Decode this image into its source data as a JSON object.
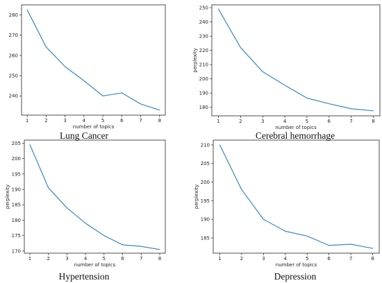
{
  "line_color": "#3a86c0",
  "chart_data": [
    {
      "type": "line",
      "caption": "Lung Cancer",
      "xlabel": "number of topics",
      "ylabel": "",
      "x": [
        1,
        2,
        3,
        4,
        5,
        6,
        7,
        8
      ],
      "series": [
        {
          "values": [
            282.5,
            264.2,
            254.5,
            247.5,
            240.0,
            241.5,
            236.0,
            233.0
          ]
        }
      ],
      "xlim": [
        0.7,
        8.3
      ],
      "ylim": [
        230.5,
        285.0
      ],
      "xticks": [
        1,
        2,
        3,
        4,
        5,
        6,
        7,
        8
      ],
      "yticks": [
        240,
        250,
        260,
        270,
        280
      ],
      "grid": false
    },
    {
      "type": "line",
      "caption": "Cerebral hemorrhage",
      "xlabel": "number of topics",
      "ylabel": "perplexity",
      "x": [
        1,
        2,
        3,
        4,
        5,
        6,
        7,
        8
      ],
      "series": [
        {
          "values": [
            249.0,
            222.0,
            205.0,
            195.5,
            186.5,
            182.5,
            179.0,
            177.5
          ]
        }
      ],
      "xlim": [
        0.7,
        8.3
      ],
      "ylim": [
        174.0,
        252.0
      ],
      "xticks": [
        1,
        2,
        3,
        4,
        5,
        6,
        7,
        8
      ],
      "yticks": [
        180,
        190,
        200,
        210,
        220,
        230,
        240,
        250
      ],
      "grid": false
    },
    {
      "type": "line",
      "caption": "Hypertension",
      "xlabel": "number of topics",
      "ylabel": "perplexity",
      "x": [
        1,
        2,
        3,
        4,
        5,
        6,
        7,
        8
      ],
      "series": [
        {
          "values": [
            204.5,
            190.5,
            184.0,
            179.0,
            175.0,
            172.0,
            171.5,
            170.5
          ]
        }
      ],
      "xlim": [
        0.7,
        8.3
      ],
      "ylim": [
        169.3,
        206.0
      ],
      "xticks": [
        1,
        2,
        3,
        4,
        5,
        6,
        7,
        8
      ],
      "yticks": [
        170,
        175,
        180,
        185,
        190,
        195,
        200,
        205
      ],
      "grid": false
    },
    {
      "type": "line",
      "caption": "Depression",
      "xlabel": "number of topics",
      "ylabel": "perplexity",
      "x": [
        1,
        2,
        3,
        4,
        5,
        6,
        7,
        8
      ],
      "series": [
        {
          "values": [
            210.0,
            198.0,
            190.0,
            186.8,
            185.5,
            183.0,
            183.3,
            182.2
          ]
        }
      ],
      "xlim": [
        0.7,
        8.3
      ],
      "ylim": [
        180.9,
        211.3
      ],
      "xticks": [
        1,
        2,
        3,
        4,
        5,
        6,
        7,
        8
      ],
      "yticks": [
        185,
        190,
        195,
        200,
        205,
        210
      ],
      "grid": false
    }
  ]
}
